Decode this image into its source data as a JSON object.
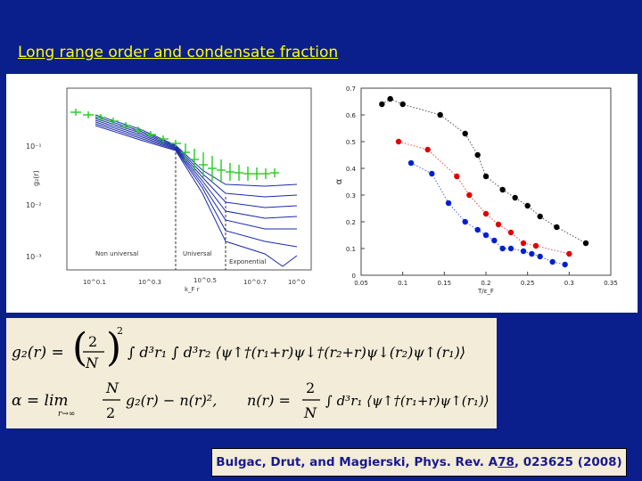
{
  "slide": {
    "title": "Long range order and condensate fraction"
  },
  "left_plot": {
    "ylabel": "g₂(r)",
    "xlabel": "k_F r",
    "ytick_labels": [
      "10⁻¹",
      "10⁻²",
      "10⁻³"
    ],
    "xtick_labels": [
      "10^0.1",
      "10^0.3",
      "10^0.5",
      "10^0.7",
      "10^0"
    ],
    "region_labels": [
      "Non universal",
      "Universal",
      "Exponential"
    ]
  },
  "chart_data": {
    "type": "scatter",
    "ylabel": "α",
    "xlabel": "T/ε_F",
    "xlim": [
      0.05,
      0.35
    ],
    "ylim": [
      0,
      0.7
    ],
    "xticks": [
      "0.05",
      "0.1",
      "0.15",
      "0.2",
      "0.25",
      "0.3",
      "0.35"
    ],
    "yticks": [
      "0",
      "0.1",
      "0.2",
      "0.3",
      "0.4",
      "0.5",
      "0.6",
      "0.7"
    ],
    "series": [
      {
        "color": "#000000",
        "x": [
          0.075,
          0.085,
          0.1,
          0.145,
          0.175,
          0.19,
          0.2,
          0.22,
          0.235,
          0.25,
          0.265,
          0.285,
          0.32
        ],
        "y": [
          0.64,
          0.66,
          0.64,
          0.6,
          0.53,
          0.45,
          0.37,
          0.32,
          0.29,
          0.26,
          0.22,
          0.18,
          0.12
        ]
      },
      {
        "color": "#e00000",
        "x": [
          0.095,
          0.13,
          0.165,
          0.18,
          0.2,
          0.215,
          0.23,
          0.245,
          0.26,
          0.3
        ],
        "y": [
          0.5,
          0.47,
          0.37,
          0.3,
          0.23,
          0.19,
          0.16,
          0.12,
          0.11,
          0.08
        ]
      },
      {
        "color": "#0020d0",
        "x": [
          0.11,
          0.135,
          0.155,
          0.175,
          0.19,
          0.2,
          0.21,
          0.22,
          0.23,
          0.245,
          0.255,
          0.265,
          0.28,
          0.295
        ],
        "y": [
          0.42,
          0.38,
          0.27,
          0.2,
          0.17,
          0.15,
          0.13,
          0.1,
          0.1,
          0.09,
          0.08,
          0.07,
          0.05,
          0.04
        ]
      }
    ]
  },
  "formulas": {
    "g2_lhs": "g₂(r) =",
    "g2_rhs": "∫ d³r₁ ∫ d³r₂ ⟨ψ↑†(r₁+r)ψ↓†(r₂+r)ψ↓(r₂)ψ↑(r₁)⟩",
    "frac_num": "2",
    "frac_den": "N",
    "power": "2",
    "alpha_lhs": "α = lim",
    "alpha_sub": "r→∞",
    "alpha_frac_num": "N",
    "alpha_frac_den": "2",
    "alpha_rhs": "g₂(r) − n(r)²,",
    "n_lhs": "n(r) =",
    "n_frac_num": "2",
    "n_frac_den": "N",
    "n_rhs": "∫ d³r₁ ⟨ψ↑†(r₁+r)ψ↑(r₁)⟩"
  },
  "citation": {
    "text_before": "Bulgac, Drut, and Magierski, Phys. Rev. A ",
    "volume": "78",
    "text_after": ", 023625 (2008)"
  }
}
